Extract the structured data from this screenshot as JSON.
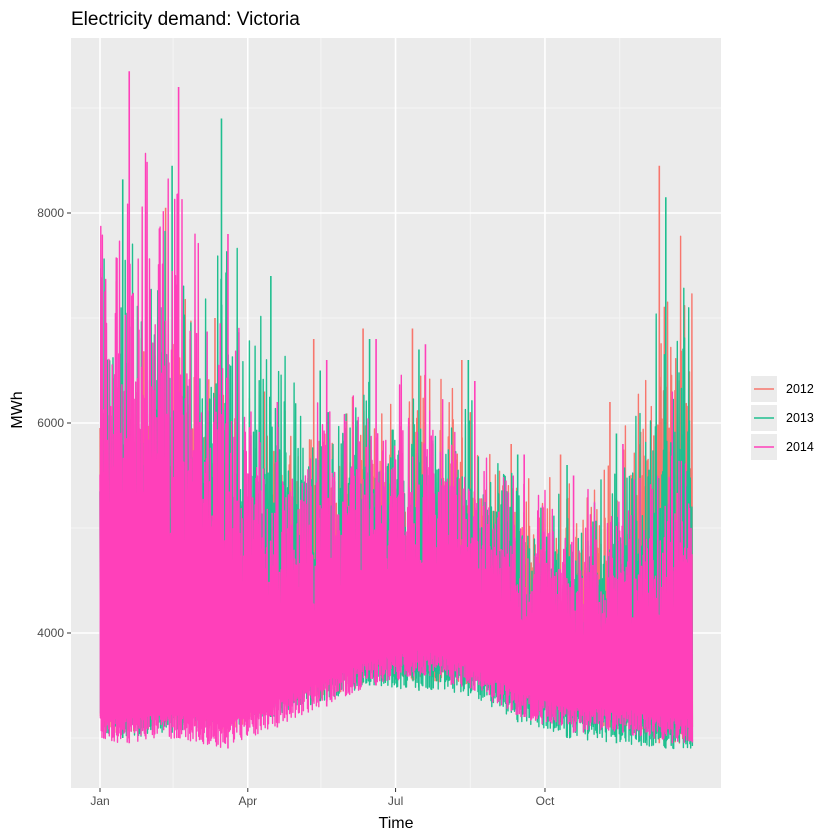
{
  "chart_data": {
    "type": "line",
    "title": "Electricity demand: Victoria",
    "xlabel": "Time",
    "ylabel": "MWh",
    "x_range": [
      "Jan",
      "Dec"
    ],
    "x_ticks": [
      "Jan",
      "Apr",
      "Jul",
      "Oct"
    ],
    "ylim": [
      2800,
      9500
    ],
    "y_ticks": [
      4000,
      6000,
      8000
    ],
    "grid": true,
    "legend_position": "right",
    "sampling": "half-hourly",
    "series": [
      {
        "name": "2012",
        "color": "#F8766D",
        "monthly_trough": [
          3050,
          3150,
          3050,
          3250,
          3350,
          3550,
          3550,
          3500,
          3400,
          3150,
          3100,
          2950
        ],
        "monthly_peak": [
          7350,
          8050,
          7000,
          6300,
          6800,
          6900,
          6900,
          6600,
          5800,
          5700,
          6200,
          8450
        ]
      },
      {
        "name": "2013",
        "color": "#00BA38",
        "monthly_trough": [
          3000,
          3050,
          3100,
          3200,
          3350,
          3500,
          3450,
          3400,
          3150,
          3000,
          2950,
          2900
        ],
        "monthly_peak": [
          8320,
          8450,
          8900,
          7400,
          6500,
          6800,
          6700,
          6600,
          5700,
          5600,
          5900,
          8150
        ]
      },
      {
        "name": "2014",
        "color": "#FF40BA",
        "monthly_trough": [
          2950,
          3000,
          2900,
          3100,
          3300,
          3500,
          3600,
          3450,
          3200,
          3050,
          3050,
          2950
        ],
        "monthly_peak": [
          9350,
          9200,
          7800,
          6200,
          6600,
          6800,
          6750,
          6400,
          5700,
          5500,
          5800,
          6300
        ]
      }
    ],
    "legend": [
      {
        "label": "2012",
        "color": "#F8766D"
      },
      {
        "label": "2013",
        "color": "#1FBF8F"
      },
      {
        "label": "2014",
        "color": "#FF40BA"
      }
    ]
  }
}
